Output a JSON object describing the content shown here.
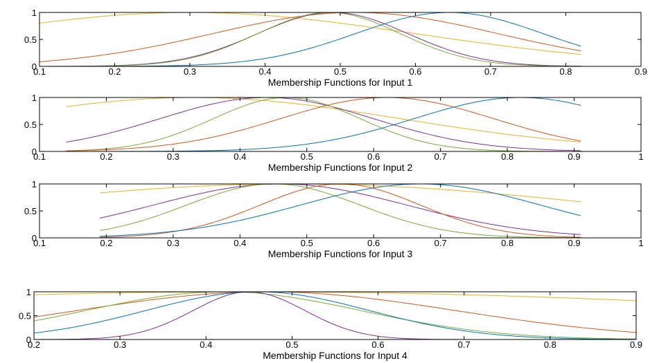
{
  "chart_data": [
    {
      "type": "line",
      "xlabel": "Membership Functions for Input 1",
      "xlim": [
        0.1,
        0.9
      ],
      "ylim": [
        0,
        1
      ],
      "xticks": [
        "0.1",
        "0.2",
        "0.3",
        "0.4",
        "0.5",
        "0.6",
        "0.7",
        "0.8",
        "0.9"
      ],
      "yticks": [
        "0",
        "0.5",
        "1"
      ],
      "x_range": [
        0.1,
        0.82
      ],
      "series": [
        {
          "color": "#EDB120",
          "center": 0.3,
          "sigma": 0.3
        },
        {
          "color": "#D95319",
          "center": 0.52,
          "sigma": 0.19
        },
        {
          "color": "#7E2F8E",
          "center": 0.49,
          "sigma": 0.1
        },
        {
          "color": "#77AC30",
          "center": 0.485,
          "sigma": 0.095
        },
        {
          "color": "#0072BD",
          "center": 0.645,
          "sigma": 0.125
        }
      ]
    },
    {
      "type": "line",
      "xlabel": "Membership Functions for Input 2",
      "xlim": [
        0.1,
        1
      ],
      "ylim": [
        0,
        1
      ],
      "xticks": [
        "0.1",
        "0.2",
        "0.3",
        "0.4",
        "0.5",
        "0.6",
        "0.7",
        "0.8",
        "0.9",
        "1"
      ],
      "yticks": [
        "0",
        "0.5",
        "1"
      ],
      "x_range": [
        0.14,
        0.91
      ],
      "series": [
        {
          "color": "#EDB120",
          "center": 0.33,
          "sigma": 0.31
        },
        {
          "color": "#7E2F8E",
          "center": 0.44,
          "sigma": 0.16
        },
        {
          "color": "#77AC30",
          "center": 0.47,
          "sigma": 0.11
        },
        {
          "color": "#D95319",
          "center": 0.62,
          "sigma": 0.16
        },
        {
          "color": "#0072BD",
          "center": 0.82,
          "sigma": 0.16
        }
      ]
    },
    {
      "type": "line",
      "xlabel": "Membership Functions for Input 3",
      "xlim": [
        0.1,
        1
      ],
      "ylim": [
        0,
        1
      ],
      "xticks": [
        "0.1",
        "0.2",
        "0.3",
        "0.4",
        "0.5",
        "0.6",
        "0.7",
        "0.8",
        "0.9",
        "1"
      ],
      "yticks": [
        "0",
        "0.5",
        "1"
      ],
      "x_range": [
        0.19,
        0.91
      ],
      "series": [
        {
          "color": "#EDB120",
          "center": 0.48,
          "sigma": 0.48
        },
        {
          "color": "#7E2F8E",
          "center": 0.46,
          "sigma": 0.19
        },
        {
          "color": "#77AC30",
          "center": 0.45,
          "sigma": 0.13
        },
        {
          "color": "#D95319",
          "center": 0.55,
          "sigma": 0.12
        },
        {
          "color": "#0072BD",
          "center": 0.67,
          "sigma": 0.18
        }
      ]
    },
    {
      "type": "line",
      "xlabel": "Membership Functions for Input 4",
      "xlim": [
        0.2,
        0.9
      ],
      "ylim": [
        0,
        1
      ],
      "xticks": [
        "0.2",
        "0.3",
        "0.4",
        "0.5",
        "0.6",
        "0.7",
        "0.8",
        "0.9"
      ],
      "yticks": [
        "0",
        "0.5",
        "1"
      ],
      "x_range": [
        0.2,
        0.9
      ],
      "series": [
        {
          "color": "#EDB120",
          "center": 0.45,
          "sigma": 0.7
        },
        {
          "color": "#D95319",
          "center": 0.47,
          "sigma": 0.22
        },
        {
          "color": "#77AC30",
          "center": 0.42,
          "sigma": 0.16
        },
        {
          "color": "#0072BD",
          "center": 0.46,
          "sigma": 0.13
        },
        {
          "color": "#7E2F8E",
          "center": 0.45,
          "sigma": 0.065
        }
      ]
    }
  ]
}
